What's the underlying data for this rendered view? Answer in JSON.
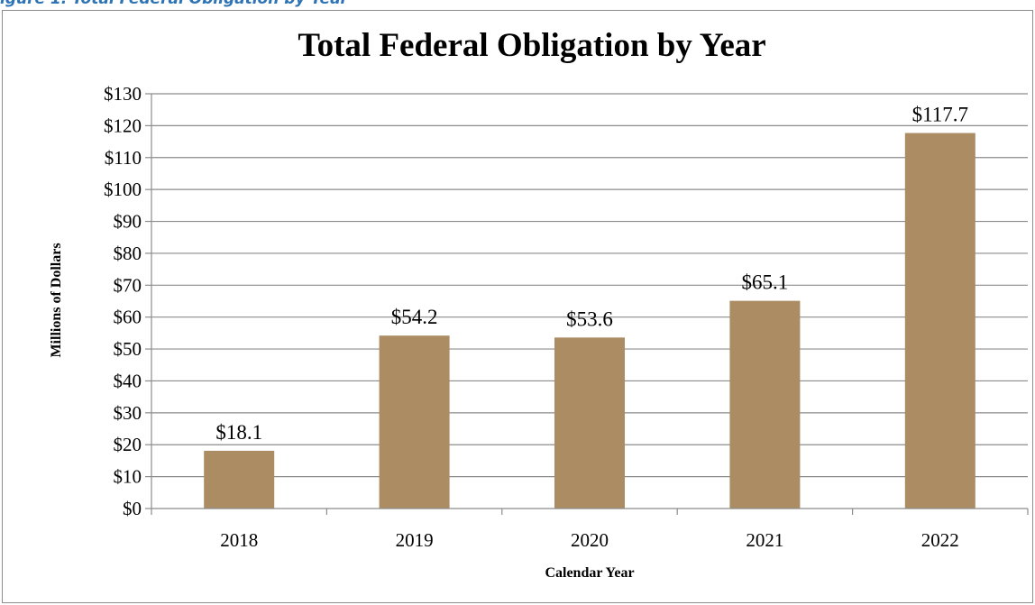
{
  "caption_fragment": "igure 1. Total Federal Obligation by Year",
  "chart_data": {
    "type": "bar",
    "title": "Total Federal Obligation by Year",
    "xlabel": "Calendar Year",
    "ylabel": "Millions of Dollars",
    "categories": [
      "2018",
      "2019",
      "2020",
      "2021",
      "2022"
    ],
    "values": [
      18.1,
      54.2,
      53.6,
      65.1,
      117.7
    ],
    "data_labels": [
      "$18.1",
      "$54.2",
      "$53.6",
      "$65.1",
      "$117.7"
    ],
    "ylim": [
      0,
      130
    ],
    "y_ticks": [
      0,
      10,
      20,
      30,
      40,
      50,
      60,
      70,
      80,
      90,
      100,
      110,
      120,
      130
    ],
    "y_tick_labels": [
      "$0",
      "$10",
      "$20",
      "$30",
      "$40",
      "$50",
      "$60",
      "$70",
      "$80",
      "$90",
      "$100",
      "$110",
      "$120",
      "$130"
    ],
    "grid": true,
    "legend": "none",
    "bar_color": "#ab8c63",
    "gridline_color": "#8c8c8c"
  }
}
